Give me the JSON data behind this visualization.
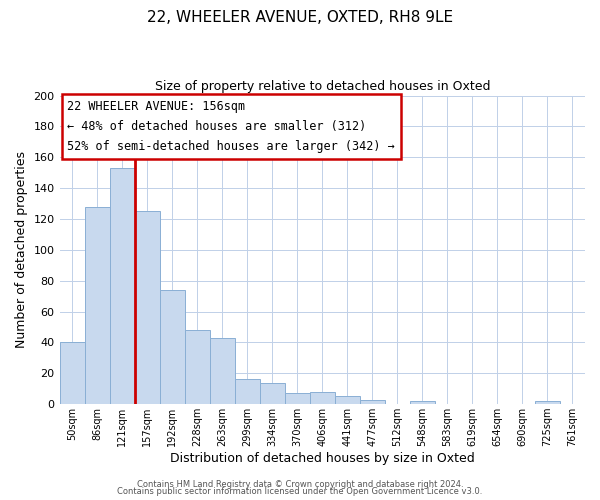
{
  "title_line1": "22, WHEELER AVENUE, OXTED, RH8 9LE",
  "title_line2": "Size of property relative to detached houses in Oxted",
  "xlabel": "Distribution of detached houses by size in Oxted",
  "ylabel": "Number of detached properties",
  "bar_labels": [
    "50sqm",
    "86sqm",
    "121sqm",
    "157sqm",
    "192sqm",
    "228sqm",
    "263sqm",
    "299sqm",
    "334sqm",
    "370sqm",
    "406sqm",
    "441sqm",
    "477sqm",
    "512sqm",
    "548sqm",
    "583sqm",
    "619sqm",
    "654sqm",
    "690sqm",
    "725sqm",
    "761sqm"
  ],
  "bar_values": [
    40,
    128,
    153,
    125,
    74,
    48,
    43,
    16,
    14,
    7,
    8,
    5,
    3,
    0,
    2,
    0,
    0,
    0,
    0,
    2,
    0
  ],
  "bar_color": "#c8d9ee",
  "bar_edge_color": "#8aafd4",
  "vline_color": "#cc0000",
  "ylim": [
    0,
    200
  ],
  "yticks": [
    0,
    20,
    40,
    60,
    80,
    100,
    120,
    140,
    160,
    180,
    200
  ],
  "annotation_line1": "22 WHEELER AVENUE: 156sqm",
  "annotation_line2": "← 48% of detached houses are smaller (312)",
  "annotation_line3": "52% of semi-detached houses are larger (342) →",
  "annotation_box_color": "#ffffff",
  "annotation_box_edge": "#cc0000",
  "footer_line1": "Contains HM Land Registry data © Crown copyright and database right 2024.",
  "footer_line2": "Contains public sector information licensed under the Open Government Licence v3.0.",
  "background_color": "#ffffff",
  "grid_color": "#c0d0e8"
}
